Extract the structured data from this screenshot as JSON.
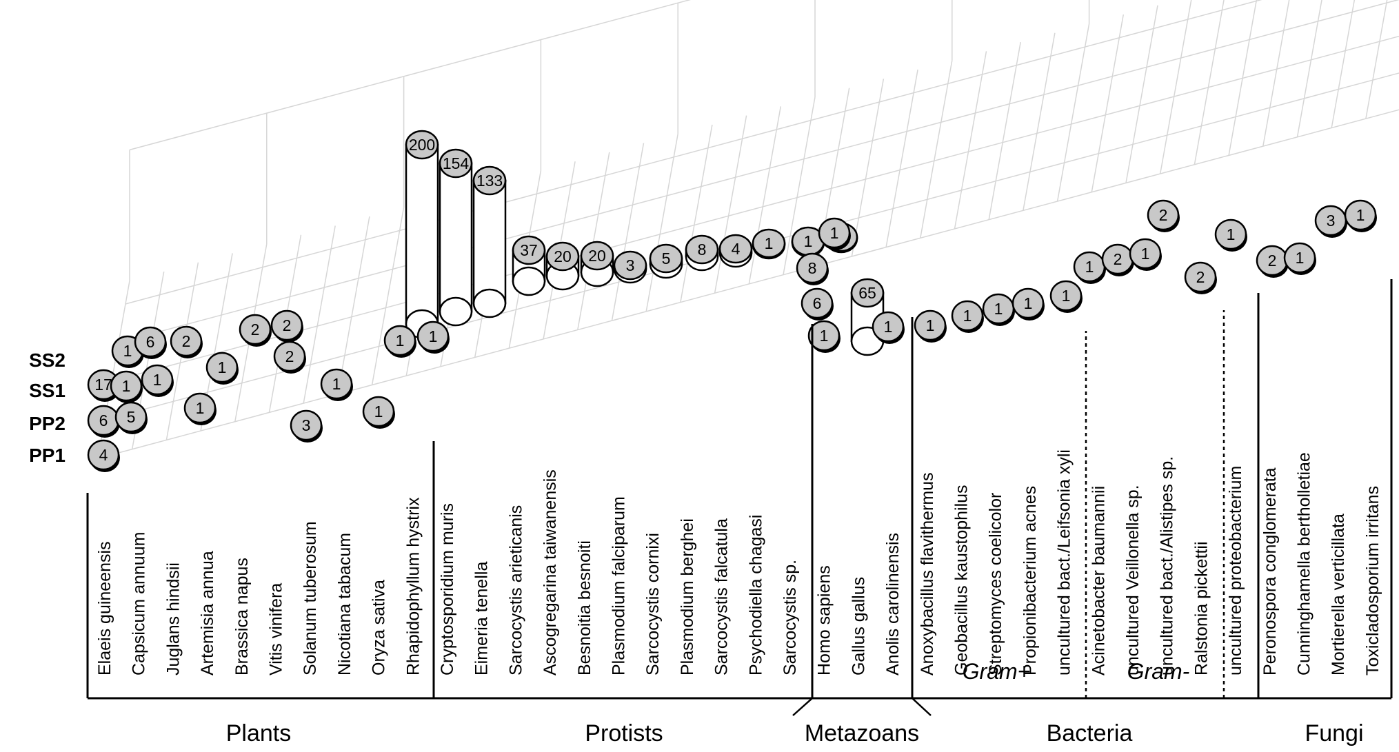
{
  "chart_data": {
    "type": "bar",
    "rows": [
      "PP1",
      "PP2",
      "SS1",
      "SS2"
    ],
    "categories": [
      "Elaeis guineensis",
      "Capsicum annuum",
      "Juglans hindsii",
      "Artemisia annua",
      "Brassica napus",
      "Vitis vinifera",
      "Solanum tuberosum",
      "Nicotiana tabacum",
      "Oryza sativa",
      "Rhapidophyllum hystrix",
      "Cryptosporidium muris",
      "Eimeria tenella",
      "Sarcocystis arieticanis",
      "Ascogregarina taiwanensis",
      "Besnoitia besnoiti",
      "Plasmodium falciparum",
      "Sarcocystis cornixi",
      "Plasmodium berghei",
      "Sarcocystis falcatula",
      "Psychodiella chagasi",
      "Sarcocystis sp.",
      "Homo sapiens",
      "Gallus gallus",
      "Anolis carolinensis",
      "Anoxybacillus flavithermus",
      "Geobacillus kaustophilus",
      "Streptomyces coelicolor",
      "Propionibacterium acnes",
      "uncultured bact./Leifsonia xyli",
      "Acinetobacter baumannii",
      "uncultured Veillonella sp.",
      "uncultured bact./Alistipes sp.",
      "Ralstonia pickettii",
      "uncultured proteobacterium",
      "Peronospora conglomerata",
      "Cunninghamella bertholletiae",
      "Mortierella verticillata",
      "Toxicladosporium irritans"
    ],
    "groups": [
      {
        "name": "Plants",
        "first": 0,
        "last": 9
      },
      {
        "name": "Protists",
        "first": 10,
        "last": 20
      },
      {
        "name": "Metazoans",
        "first": 21,
        "last": 23
      },
      {
        "name": "Bacteria",
        "first": 24,
        "last": 33
      },
      {
        "name": "Fungi",
        "first": 34,
        "last": 37
      }
    ],
    "subgroups": [
      "Gram+",
      "Gram-"
    ],
    "series": [
      {
        "name": "PP1",
        "values": {
          "Elaeis guineensis": 4
        }
      },
      {
        "name": "PP2",
        "values": {
          "Elaeis guineensis": 6,
          "Capsicum annuum": 5,
          "Artemisia annua": 1,
          "Solanum tuberosum": 3,
          "Oryza sativa": 1
        }
      },
      {
        "name": "SS1",
        "values": {
          "Elaeis guineensis": 17,
          "Capsicum annuum": 1,
          "Juglans hindsii": 1,
          "Brassica napus": 1,
          "Vitis vinifera": 2,
          "Nicotiana tabacum": 1,
          "Rhapidophyllum hystrix": 1,
          "Cryptosporidium muris": 1,
          "Homo sapiens": 1,
          "Gallus gallus": 65,
          "Anolis carolinensis": 1,
          "Anoxybacillus flavithermus": 1,
          "Geobacillus kaustophilus": 1,
          "Streptomyces coelicolor": 1,
          "Propionibacterium acnes": 1,
          "Ralstonia pickettii": 2,
          "Peronospora conglomerata": 2,
          "Cunninghamella bertholletiae": 1
        }
      },
      {
        "name": "SS2",
        "values": {
          "Capsicum annuum": 1,
          "Juglans hindsii": 6,
          "Artemisia annua": 2,
          "Brassica napus": 2,
          "Vitis vinifera": 2,
          "Rhapidophyllum hystrix": 200,
          "Cryptosporidium muris": 154,
          "Eimeria tenella": 133,
          "Sarcocystis arieticanis": 37,
          "Ascogregarina taiwanensis": 20,
          "Besnoitia besnoiti": 20,
          "Plasmodium falciparum": 3,
          "Sarcocystis cornixi": 5,
          "Plasmodium berghei": 8,
          "Sarcocystis falcatula": 4,
          "Psychodiella chagasi": 1,
          "Sarcocystis sp.": 1,
          "Homo sapiens": 1,
          "Uncultured bact./Leifsonia xyli": 1,
          "Acinetobacter baumannii": 2,
          "uncultured Veillonella sp.": 1,
          "uncultured bact./Alistipes sp.": 2,
          "uncultured proteobacterium": 1,
          "Mortierella verticillata": 3,
          "Toxicladosporium irritans": 1
        }
      }
    ],
    "extra_points": [
      {
        "category": "Sarcocystis sp.",
        "label": "8"
      },
      {
        "category": "Sarcocystis sp.",
        "label": "6"
      }
    ],
    "point_labels": [
      {
        "c": 0,
        "r": 0,
        "label": "4"
      },
      {
        "c": 0,
        "r": 1,
        "label": "6"
      },
      {
        "c": 0,
        "r": 2,
        "label": "17"
      },
      {
        "c": 1,
        "r": 1,
        "label": "5"
      },
      {
        "c": 1,
        "r": 2,
        "label": "1"
      },
      {
        "c": 1,
        "r": 3,
        "label": "1"
      },
      {
        "c": 1,
        "r": 3.6,
        "label": "6"
      },
      {
        "c": 2,
        "r": 2,
        "label": "1"
      },
      {
        "c": 2,
        "r": 3.6,
        "label": "2"
      },
      {
        "c": 3,
        "r": 1,
        "label": "1"
      },
      {
        "c": 3,
        "r": 3,
        "label": "1"
      },
      {
        "c": 5,
        "r": 3.6,
        "label": "2"
      },
      {
        "c": 6,
        "r": 3.6,
        "label": "2"
      },
      {
        "c": 6,
        "r": 2.7,
        "label": "2"
      },
      {
        "c": 6,
        "r": 1,
        "label": "3"
      },
      {
        "c": 7,
        "r": 2,
        "label": "1"
      },
      {
        "c": 8,
        "r": 1,
        "label": "1"
      },
      {
        "c": 9,
        "r": 2.6,
        "label": "1"
      },
      {
        "c": 10,
        "r": 2.6,
        "label": "1"
      },
      {
        "c": 22,
        "r": 1.6,
        "label": "1"
      },
      {
        "c": 22,
        "r": 2.5,
        "label": "6"
      },
      {
        "c": 22,
        "r": 3.2,
        "label": "8"
      },
      {
        "c": 22,
        "r": 3.7,
        "label": "1"
      },
      {
        "c": 23,
        "r": 3.6,
        "label": "1"
      },
      {
        "c": 24,
        "r": 2,
        "label": "1"
      },
      {
        "c": 25,
        "r": 2,
        "label": "1"
      },
      {
        "c": 26,
        "r": 2,
        "label": "1"
      },
      {
        "c": 27,
        "r": 2,
        "label": "1"
      },
      {
        "c": 28,
        "r": 2,
        "label": "1"
      },
      {
        "c": 29,
        "r": 3,
        "label": "1"
      },
      {
        "c": 30,
        "r": 3,
        "label": "2"
      },
      {
        "c": 31,
        "r": 3,
        "label": "1"
      },
      {
        "c": 32,
        "r": 3.9,
        "label": "2"
      },
      {
        "c": 33,
        "r": 2,
        "label": "2"
      },
      {
        "c": 34,
        "r": 3,
        "label": "1"
      },
      {
        "c": 35,
        "r": 2.6,
        "label": "2"
      },
      {
        "c": 36,
        "r": 2.6,
        "label": "1"
      },
      {
        "c": 37,
        "r": 3.6,
        "label": "3"
      },
      {
        "c": 38,
        "r": 3.6,
        "label": "1"
      }
    ],
    "cylinders": [
      {
        "c": 11,
        "label": "200"
      },
      {
        "c": 12,
        "label": "154"
      },
      {
        "c": 13,
        "label": "133"
      },
      {
        "c": 14,
        "label": "37"
      },
      {
        "c": 15,
        "label": "20"
      },
      {
        "c": 16,
        "label": "20"
      },
      {
        "c": 17,
        "label": "3"
      },
      {
        "c": 18,
        "label": "5"
      },
      {
        "c": 19,
        "label": "8"
      },
      {
        "c": 20,
        "label": "4"
      },
      {
        "c": 21,
        "label": "1"
      },
      {
        "c": 22,
        "label": "1"
      },
      {
        "c": 23,
        "label": "1"
      },
      {
        "c": 24,
        "label": "65"
      }
    ],
    "colors": {
      "marker_fill": "#c8c8c8",
      "cylinder_fill": "#ffffff",
      "grid": "#d6d6d6"
    }
  }
}
